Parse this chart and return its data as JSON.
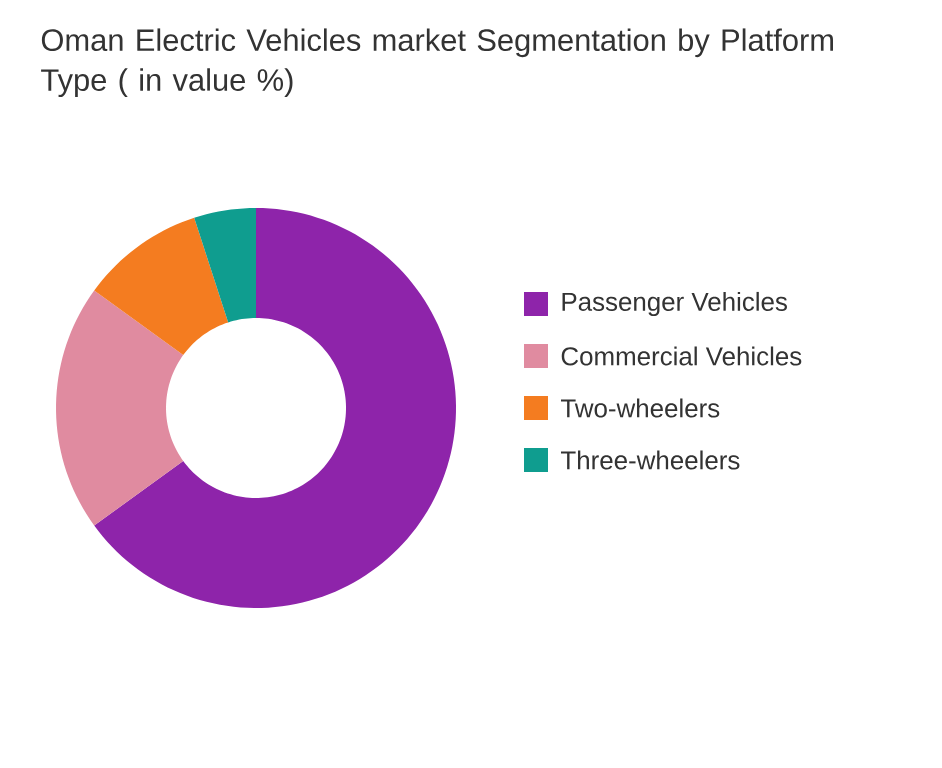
{
  "chart_data": {
    "type": "donut",
    "title": "Oman Electric Vehicles market Segmentation by Platform Type ( in value %)",
    "categories": [
      "Passenger Vehicles",
      "Commercial Vehicles",
      "Two-wheelers",
      "Three-wheelers"
    ],
    "values": [
      65,
      20,
      10,
      5
    ],
    "colors": [
      "#8e24aa",
      "#e08ba0",
      "#f47c20",
      "#0f9d8f"
    ],
    "legend": "right"
  }
}
